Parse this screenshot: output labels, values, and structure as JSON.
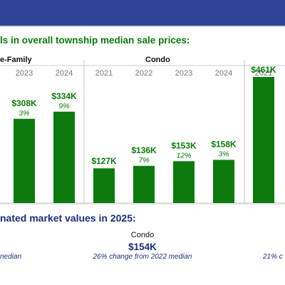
{
  "heading": "ls in overall township median sale prices:",
  "market_heading": "nated market values in 2025:",
  "colors": {
    "band": "#2e4497",
    "bar": "#0d7a0d",
    "text_green": "#0b7a0b",
    "text_blue": "#1c2f78"
  },
  "chart_data": {
    "type": "bar",
    "ylim": [
      0,
      560
    ],
    "groups": [
      {
        "name": "e-Family",
        "years": [
          "2023",
          "2024"
        ],
        "values": [
          308,
          334
        ],
        "value_labels": [
          "$308K",
          "$334K"
        ],
        "pct_labels": [
          "3%",
          "9%"
        ]
      },
      {
        "name": "Condo",
        "years": [
          "2021",
          "2022",
          "2023",
          "2024"
        ],
        "values": [
          127,
          136,
          153,
          158
        ],
        "value_labels": [
          "$127K",
          "$136K",
          "$153K",
          "$158K"
        ],
        "pct_labels": [
          "",
          "7%",
          "12%",
          "3%"
        ]
      },
      {
        "name": "",
        "years": [
          "2021"
        ],
        "values": [
          461
        ],
        "value_labels": [
          "$461K"
        ],
        "pct_labels": [
          ""
        ]
      }
    ]
  },
  "market": {
    "condo_label": "Condo",
    "condo_value": "$154K",
    "left_note": "nedian",
    "center_note": "26% change from 2022 median",
    "right_note": "21% c"
  }
}
